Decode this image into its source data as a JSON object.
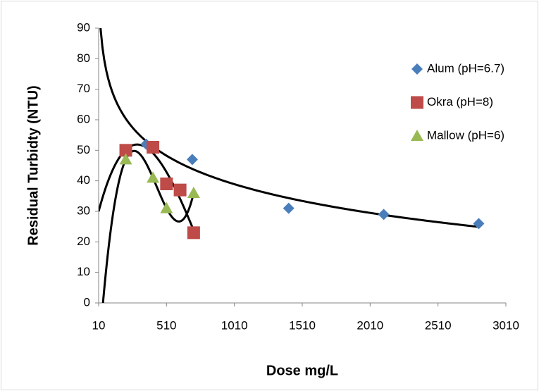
{
  "chart_data": {
    "type": "scatter",
    "x_label": "Dose mg/L",
    "y_label": "Residual Turbidty (NTU)",
    "xlim": [
      10,
      3010
    ],
    "xticks": [
      10,
      510,
      1010,
      1510,
      2010,
      2510,
      3010
    ],
    "ylim": [
      0,
      90
    ],
    "yticks": [
      0,
      10,
      20,
      30,
      40,
      50,
      60,
      70,
      80,
      90
    ],
    "legend": "right",
    "series": [
      {
        "name": "Alum (pH=6.7)",
        "color": "#4a7ebb",
        "marker": "diamond",
        "trendline": "logarithmic",
        "x": [
          360,
          700,
          1410,
          2110,
          2810
        ],
        "values": [
          52,
          47,
          31,
          29,
          26
        ]
      },
      {
        "name": "Okra (pH=8)",
        "color": "#be4b48",
        "marker": "square",
        "trendline": "polynomial",
        "x": [
          210,
          410,
          510,
          610,
          710
        ],
        "values": [
          50,
          51,
          39,
          37,
          23
        ]
      },
      {
        "name": "Mallow (pH=6)",
        "color": "#98b954",
        "marker": "triangle",
        "trendline": "polynomial",
        "x": [
          210,
          410,
          510,
          710
        ],
        "values": [
          47,
          41,
          31,
          36
        ]
      }
    ]
  }
}
